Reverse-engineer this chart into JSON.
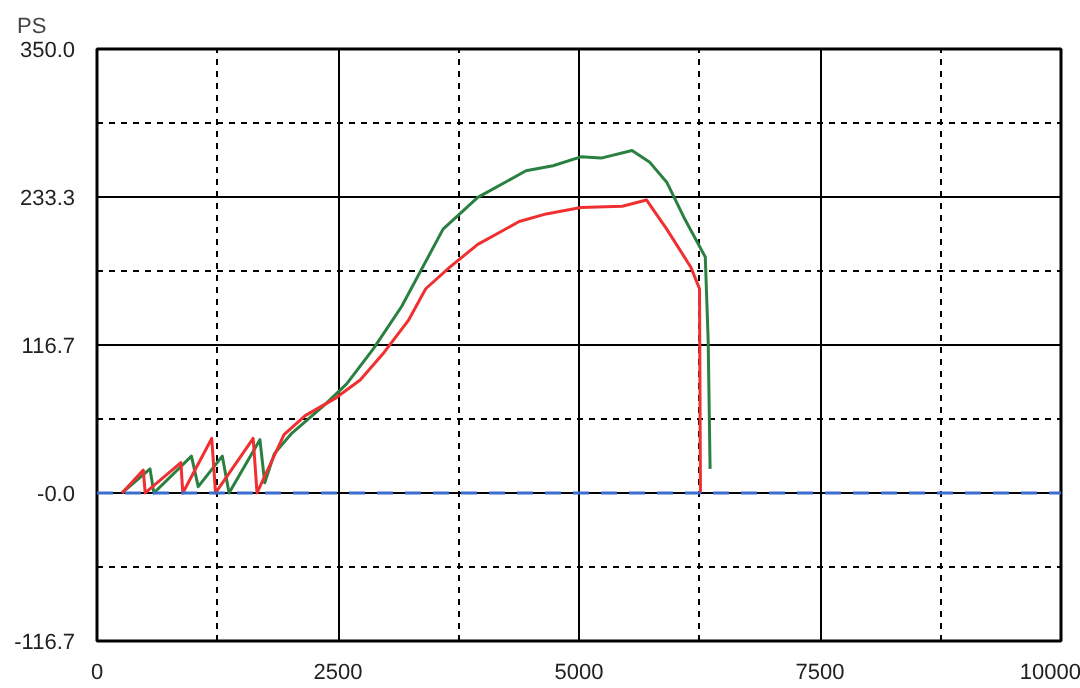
{
  "chart_data": {
    "type": "line",
    "ylabel": "PS",
    "xlim": [
      0,
      10000
    ],
    "ylim": [
      -116.7,
      350.0
    ],
    "xticks": [
      0,
      {
        "value": 1250,
        "label": null
      },
      2500,
      {
        "value": 3750,
        "label": null
      },
      5000,
      {
        "value": 6250,
        "label": null
      },
      7500,
      {
        "value": 8750,
        "label": null
      },
      10000
    ],
    "yticks": [
      {
        "value": -116.7,
        "label": "-116.7"
      },
      {
        "value": -58.3,
        "label": null
      },
      {
        "value": 0,
        "label": "-0.0"
      },
      {
        "value": 58.3,
        "label": null
      },
      116.7,
      {
        "value": 175,
        "label": null
      },
      233.3,
      {
        "value": 291.7,
        "label": null
      },
      {
        "value": 350.0,
        "label": "350.0"
      }
    ],
    "grid": true,
    "line_style": "solid",
    "series": [
      {
        "color": "#2a8040",
        "x": [
          260,
          550,
          590,
          980,
          1050,
          1300,
          1370,
          1690,
          1740,
          1840,
          2020,
          2370,
          2590,
          2870,
          3160,
          3590,
          3950,
          4450,
          4730,
          5020,
          5230,
          5550,
          5730,
          5910,
          6090,
          6310,
          6340,
          6360
        ],
        "values": [
          0,
          19,
          0,
          29,
          5,
          29,
          0,
          42,
          8,
          31,
          47,
          70,
          86,
          114,
          147,
          208,
          233,
          254,
          258,
          265,
          264,
          270,
          261,
          245,
          217,
          186,
          120,
          19
        ]
      },
      {
        "color": "#f03030",
        "x": [
          260,
          480,
          500,
          870,
          890,
          1190,
          1230,
          1620,
          1660,
          1940,
          2160,
          2480,
          2730,
          2980,
          3230,
          3410,
          3660,
          3950,
          4380,
          4660,
          5020,
          5450,
          5700,
          5910,
          6160,
          6250,
          6260
        ],
        "values": [
          0,
          18,
          0,
          24,
          0,
          43,
          0,
          43,
          0,
          46,
          61,
          75,
          89,
          111,
          136,
          161,
          178,
          196,
          214,
          220,
          225,
          226,
          231,
          208,
          178,
          161,
          0
        ]
      }
    ],
    "ref_lines": [
      {
        "axis": "y",
        "value": 0,
        "color": "#3a6fd0",
        "line_style": "dashed"
      }
    ]
  }
}
